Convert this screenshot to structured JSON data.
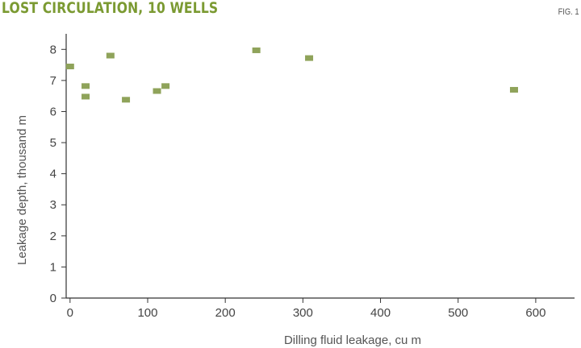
{
  "header": {
    "title": "LOST CIRCULATION, 10 WELLS",
    "fig_label": "FIG. 1"
  },
  "chart_data": {
    "type": "scatter",
    "title": "LOST CIRCULATION, 10 WELLS",
    "xlabel": "Dilling fluid leakage, cu m",
    "ylabel": "Leakage depth, thousand m",
    "xlim": [
      -5,
      650
    ],
    "ylim": [
      0,
      8.5
    ],
    "xticks": [
      0,
      100,
      200,
      300,
      400,
      500,
      600
    ],
    "yticks": [
      0,
      1,
      2,
      3,
      4,
      5,
      6,
      7,
      8
    ],
    "grid": false,
    "marker_color": "#8fa35a",
    "series": [
      {
        "x": [
          0,
          20,
          20,
          52,
          72,
          112,
          123,
          240,
          308,
          572
        ],
        "y": [
          7.45,
          6.82,
          6.48,
          7.8,
          6.38,
          6.66,
          6.82,
          7.97,
          7.72,
          6.7
        ]
      }
    ]
  }
}
